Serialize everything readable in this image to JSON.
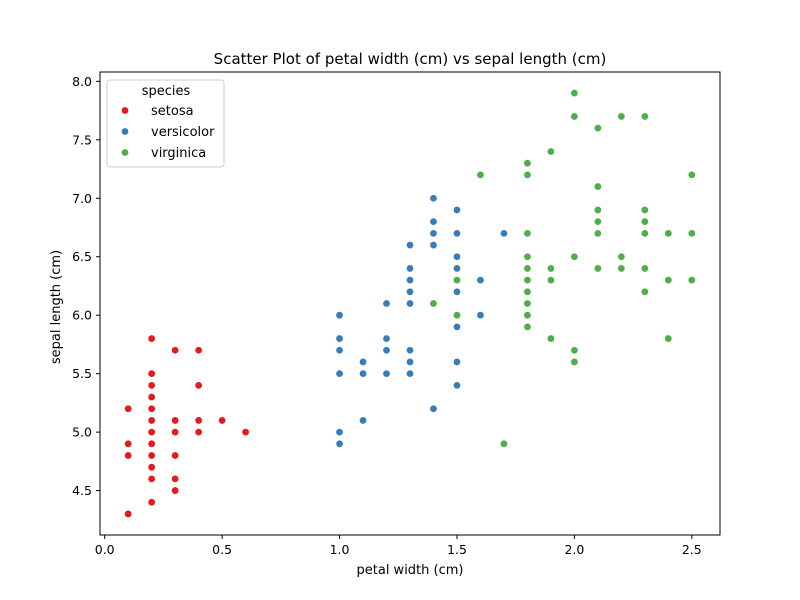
{
  "chart_data": {
    "type": "scatter",
    "title": "Scatter Plot of petal width (cm) vs sepal length (cm)",
    "xlabel": "petal width (cm)",
    "ylabel": "sepal length (cm)",
    "xlim": [
      -0.02,
      2.62
    ],
    "ylim": [
      4.12,
      8.08
    ],
    "xticks": [
      "0.0",
      "0.5",
      "1.0",
      "1.5",
      "2.0",
      "2.5"
    ],
    "yticks": [
      "4.5",
      "5.0",
      "5.5",
      "6.0",
      "6.5",
      "7.0",
      "7.5",
      "8.0"
    ],
    "grid": false,
    "legend": {
      "title": "species",
      "placement": "top-left"
    },
    "series": [
      {
        "name": "setosa",
        "color": "#e41a1c",
        "points": [
          [
            0.1,
            5.2
          ],
          [
            0.1,
            4.9
          ],
          [
            0.1,
            4.8
          ],
          [
            0.1,
            4.3
          ],
          [
            0.2,
            5.8
          ],
          [
            0.2,
            5.5
          ],
          [
            0.2,
            5.4
          ],
          [
            0.2,
            5.3
          ],
          [
            0.2,
            5.2
          ],
          [
            0.2,
            5.1
          ],
          [
            0.2,
            5.0
          ],
          [
            0.2,
            4.9
          ],
          [
            0.2,
            4.8
          ],
          [
            0.2,
            4.7
          ],
          [
            0.2,
            4.6
          ],
          [
            0.2,
            4.4
          ],
          [
            0.3,
            5.7
          ],
          [
            0.3,
            5.1
          ],
          [
            0.3,
            5.0
          ],
          [
            0.3,
            4.8
          ],
          [
            0.3,
            4.6
          ],
          [
            0.3,
            4.5
          ],
          [
            0.4,
            5.7
          ],
          [
            0.4,
            5.4
          ],
          [
            0.4,
            5.1
          ],
          [
            0.4,
            5.0
          ],
          [
            0.5,
            5.1
          ],
          [
            0.6,
            5.0
          ]
        ]
      },
      {
        "name": "versicolor",
        "color": "#377eb8",
        "points": [
          [
            1.0,
            6.0
          ],
          [
            1.0,
            5.8
          ],
          [
            1.0,
            5.7
          ],
          [
            1.0,
            5.5
          ],
          [
            1.0,
            5.0
          ],
          [
            1.0,
            4.9
          ],
          [
            1.1,
            5.6
          ],
          [
            1.1,
            5.5
          ],
          [
            1.1,
            5.1
          ],
          [
            1.2,
            6.1
          ],
          [
            1.2,
            5.8
          ],
          [
            1.2,
            5.7
          ],
          [
            1.2,
            5.5
          ],
          [
            1.3,
            6.6
          ],
          [
            1.3,
            6.4
          ],
          [
            1.3,
            6.3
          ],
          [
            1.3,
            6.2
          ],
          [
            1.3,
            6.1
          ],
          [
            1.3,
            5.7
          ],
          [
            1.3,
            5.6
          ],
          [
            1.3,
            5.5
          ],
          [
            1.4,
            7.0
          ],
          [
            1.4,
            6.8
          ],
          [
            1.4,
            6.7
          ],
          [
            1.4,
            6.6
          ],
          [
            1.4,
            5.2
          ],
          [
            1.5,
            6.9
          ],
          [
            1.5,
            6.7
          ],
          [
            1.5,
            6.5
          ],
          [
            1.5,
            6.4
          ],
          [
            1.5,
            6.2
          ],
          [
            1.5,
            5.9
          ],
          [
            1.5,
            5.6
          ],
          [
            1.5,
            5.4
          ],
          [
            1.6,
            6.3
          ],
          [
            1.6,
            6.0
          ],
          [
            1.7,
            6.7
          ]
        ]
      },
      {
        "name": "virginica",
        "color": "#4daf4a",
        "points": [
          [
            1.4,
            6.1
          ],
          [
            1.5,
            6.3
          ],
          [
            1.5,
            6.0
          ],
          [
            1.6,
            7.2
          ],
          [
            1.7,
            4.9
          ],
          [
            1.8,
            7.3
          ],
          [
            1.8,
            7.2
          ],
          [
            1.8,
            6.7
          ],
          [
            1.8,
            6.5
          ],
          [
            1.8,
            6.4
          ],
          [
            1.8,
            6.3
          ],
          [
            1.8,
            6.2
          ],
          [
            1.8,
            6.1
          ],
          [
            1.8,
            6.0
          ],
          [
            1.8,
            5.9
          ],
          [
            1.9,
            7.4
          ],
          [
            1.9,
            6.4
          ],
          [
            1.9,
            6.3
          ],
          [
            1.9,
            5.8
          ],
          [
            2.0,
            7.9
          ],
          [
            2.0,
            7.7
          ],
          [
            2.0,
            6.5
          ],
          [
            2.0,
            5.7
          ],
          [
            2.0,
            5.6
          ],
          [
            2.1,
            7.6
          ],
          [
            2.1,
            7.1
          ],
          [
            2.1,
            6.9
          ],
          [
            2.1,
            6.8
          ],
          [
            2.1,
            6.7
          ],
          [
            2.1,
            6.4
          ],
          [
            2.2,
            7.7
          ],
          [
            2.2,
            6.5
          ],
          [
            2.2,
            6.4
          ],
          [
            2.3,
            7.7
          ],
          [
            2.3,
            6.9
          ],
          [
            2.3,
            6.8
          ],
          [
            2.3,
            6.7
          ],
          [
            2.3,
            6.4
          ],
          [
            2.3,
            6.2
          ],
          [
            2.4,
            6.7
          ],
          [
            2.4,
            6.3
          ],
          [
            2.4,
            5.8
          ],
          [
            2.5,
            7.2
          ],
          [
            2.5,
            6.7
          ],
          [
            2.5,
            6.3
          ]
        ]
      }
    ]
  }
}
